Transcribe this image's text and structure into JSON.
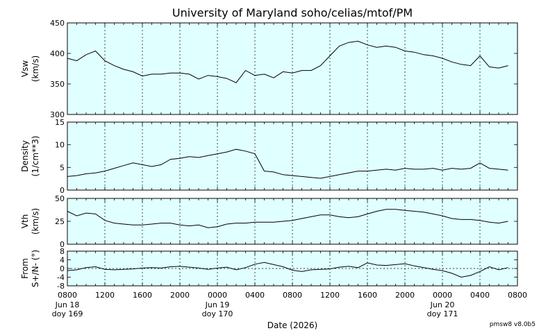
{
  "title": "University of Maryland  soho/celias/mtof/PM",
  "xlabel": "Date (2026)",
  "version": "pmsw8 v8.0b5",
  "colors": {
    "panel_bg": "#e0ffff",
    "line": "#000000",
    "grid": "#000000"
  },
  "time_ticks": [
    "0800",
    "1200",
    "1600",
    "2000",
    "0000",
    "0400",
    "0800",
    "1200",
    "1600",
    "2000",
    "0000",
    "0400",
    "0800"
  ],
  "date_labels": [
    {
      "tick_index": 0,
      "date": "Jun 18",
      "doy": "doy 169"
    },
    {
      "tick_index": 4,
      "date": "Jun 19",
      "doy": "doy 170"
    },
    {
      "tick_index": 10,
      "date": "Jun 20",
      "doy": "doy 171"
    }
  ],
  "chart_data": [
    {
      "type": "line",
      "name": "Vsw",
      "ylabel": [
        "Vsw",
        "(km/s)"
      ],
      "ylim": [
        300,
        450
      ],
      "yticks": [
        300,
        350,
        400,
        450
      ],
      "x_hours": [
        0,
        1,
        2,
        3,
        4,
        5,
        6,
        7,
        8,
        9,
        10,
        11,
        12,
        13,
        14,
        15,
        16,
        17,
        18,
        19,
        20,
        21,
        22,
        23,
        24,
        25,
        26,
        27,
        28,
        29,
        30,
        31,
        32,
        33,
        34,
        35,
        36,
        37,
        38,
        39,
        40,
        41,
        42,
        43,
        44,
        45,
        46,
        47
      ],
      "values": [
        392,
        388,
        398,
        404,
        388,
        380,
        374,
        370,
        363,
        366,
        366,
        368,
        368,
        366,
        358,
        364,
        362,
        359,
        352,
        372,
        364,
        366,
        360,
        370,
        368,
        372,
        372,
        380,
        396,
        412,
        418,
        420,
        414,
        410,
        412,
        410,
        404,
        402,
        398,
        396,
        392,
        386,
        382,
        380,
        396,
        378,
        376,
        380
      ]
    },
    {
      "type": "line",
      "name": "Density",
      "ylabel": [
        "Density",
        "(1/cm**3)"
      ],
      "ylim": [
        0,
        15
      ],
      "yticks": [
        0,
        5,
        10,
        15
      ],
      "x_hours": [
        0,
        1,
        2,
        3,
        4,
        5,
        6,
        7,
        8,
        9,
        10,
        11,
        12,
        13,
        14,
        15,
        16,
        17,
        18,
        19,
        20,
        21,
        22,
        23,
        24,
        25,
        26,
        27,
        28,
        29,
        30,
        31,
        32,
        33,
        34,
        35,
        36,
        37,
        38,
        39,
        40,
        41,
        42,
        43,
        44,
        45,
        46,
        47
      ],
      "values": [
        3.0,
        3.2,
        3.6,
        3.8,
        4.2,
        4.8,
        5.4,
        6.0,
        5.6,
        5.2,
        5.6,
        6.8,
        7.0,
        7.4,
        7.2,
        7.6,
        8.0,
        8.4,
        9.0,
        8.6,
        8.0,
        4.2,
        4.0,
        3.4,
        3.2,
        3.0,
        2.8,
        2.6,
        3.0,
        3.4,
        3.8,
        4.2,
        4.2,
        4.4,
        4.6,
        4.4,
        4.8,
        4.6,
        4.6,
        4.8,
        4.4,
        4.8,
        4.6,
        4.8,
        6.0,
        4.8,
        4.6,
        4.4
      ]
    },
    {
      "type": "line",
      "name": "Vth",
      "ylabel": [
        "Vth",
        "(km/s)"
      ],
      "ylim": [
        0,
        50
      ],
      "yticks": [
        0,
        25,
        50
      ],
      "x_hours": [
        0,
        1,
        2,
        3,
        4,
        5,
        6,
        7,
        8,
        9,
        10,
        11,
        12,
        13,
        14,
        15,
        16,
        17,
        18,
        19,
        20,
        21,
        22,
        23,
        24,
        25,
        26,
        27,
        28,
        29,
        30,
        31,
        32,
        33,
        34,
        35,
        36,
        37,
        38,
        39,
        40,
        41,
        42,
        43,
        44,
        45,
        46,
        47
      ],
      "values": [
        36,
        31,
        34,
        33,
        26,
        23,
        22,
        21,
        21,
        22,
        23,
        23,
        21,
        20,
        21,
        18,
        19,
        22,
        23,
        23,
        24,
        24,
        24,
        25,
        26,
        28,
        30,
        32,
        32,
        30,
        29,
        30,
        33,
        36,
        38,
        38,
        37,
        36,
        35,
        33,
        31,
        28,
        27,
        27,
        26,
        24,
        23,
        25
      ]
    },
    {
      "type": "line",
      "name": "From S+/N- (deg)",
      "ylabel": [
        "From",
        "S+/N- (°)"
      ],
      "ylim": [
        -8,
        8
      ],
      "yticks": [
        -8,
        -4,
        0,
        4,
        8
      ],
      "x_hours": [
        0,
        1,
        2,
        3,
        4,
        5,
        6,
        7,
        8,
        9,
        10,
        11,
        12,
        13,
        14,
        15,
        16,
        17,
        18,
        19,
        20,
        21,
        22,
        23,
        24,
        25,
        26,
        27,
        28,
        29,
        30,
        31,
        32,
        33,
        34,
        35,
        36,
        37,
        38,
        39,
        40,
        41,
        42,
        43,
        44,
        45,
        46,
        47
      ],
      "values": [
        -1,
        -0.6,
        0.4,
        0.8,
        -0.4,
        -0.6,
        -0.4,
        -0.2,
        0.2,
        0.4,
        0.2,
        0.8,
        1.0,
        0.6,
        0.2,
        -0.4,
        0.2,
        0.6,
        -0.6,
        0.4,
        2.0,
        2.8,
        1.8,
        0.8,
        -0.8,
        -1.4,
        -0.6,
        -0.4,
        -0.2,
        0.6,
        1.0,
        0.4,
        2.6,
        1.6,
        1.4,
        1.8,
        2.2,
        1.2,
        0.4,
        -0.4,
        -1.0,
        -2.2,
        -4.0,
        -3.2,
        -1.4,
        0.8,
        -0.6,
        0.4
      ]
    }
  ]
}
